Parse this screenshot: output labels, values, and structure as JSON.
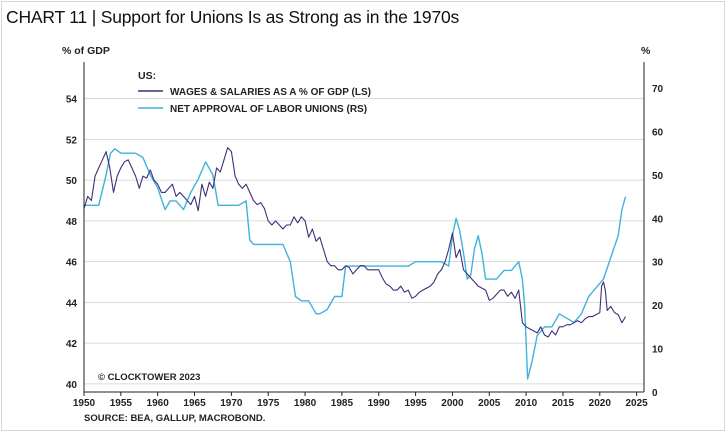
{
  "title_text": "CHART 11 | Support for Unions Is as Strong as in the 1970s",
  "chart_data": {
    "type": "line",
    "title": "CHART 11 | Support for Unions Is as Strong as in the 1970s",
    "left_axis_label": "% of GDP",
    "right_axis_label": "%",
    "legend_heading": "US:",
    "watermark": "© CLOCKTOWER 2023",
    "source": "SOURCE: BEA, GALLUP, MACROBOND.",
    "colors": {
      "wages": "#3d2f7a",
      "unions": "#3fb3dc",
      "grid": "#cfcfcf",
      "axis": "#222222"
    },
    "xlim": [
      1950,
      2026
    ],
    "ylim_left": [
      39.6,
      55.8
    ],
    "ylim_right": [
      0,
      76
    ],
    "x_ticks": [
      1950,
      1955,
      1960,
      1965,
      1970,
      1975,
      1980,
      1985,
      1990,
      1995,
      2000,
      2005,
      2010,
      2015,
      2020,
      2025
    ],
    "left_ticks": [
      40,
      42,
      44,
      46,
      48,
      50,
      52,
      54
    ],
    "right_ticks": [
      0,
      10,
      20,
      30,
      40,
      50,
      60,
      70
    ],
    "series": [
      {
        "name": "WAGES & SALARIES AS A % OF GDP (LS)",
        "axis": "left",
        "x": [
          1950.0,
          1950.5,
          1951.0,
          1951.5,
          1952.0,
          1952.5,
          1953.0,
          1953.5,
          1954.0,
          1954.5,
          1955.0,
          1955.5,
          1956.0,
          1956.5,
          1957.0,
          1957.5,
          1958.0,
          1958.5,
          1959.0,
          1959.5,
          1960.0,
          1960.5,
          1961.0,
          1961.5,
          1962.0,
          1962.5,
          1963.0,
          1963.5,
          1964.0,
          1964.5,
          1965.0,
          1965.5,
          1966.0,
          1966.5,
          1967.0,
          1967.5,
          1968.0,
          1968.5,
          1969.0,
          1969.5,
          1970.0,
          1970.5,
          1971.0,
          1971.5,
          1972.0,
          1972.5,
          1973.0,
          1973.5,
          1974.0,
          1974.5,
          1975.0,
          1975.5,
          1976.0,
          1976.5,
          1977.0,
          1977.5,
          1978.0,
          1978.5,
          1979.0,
          1979.5,
          1980.0,
          1980.5,
          1981.0,
          1981.5,
          1982.0,
          1982.5,
          1983.0,
          1983.5,
          1984.0,
          1984.5,
          1985.0,
          1985.5,
          1986.0,
          1986.5,
          1987.0,
          1987.5,
          1988.0,
          1988.5,
          1989.0,
          1989.5,
          1990.0,
          1990.5,
          1991.0,
          1991.5,
          1992.0,
          1992.5,
          1993.0,
          1993.5,
          1994.0,
          1994.5,
          1995.0,
          1995.5,
          1996.0,
          1996.5,
          1997.0,
          1997.5,
          1998.0,
          1998.5,
          1999.0,
          1999.5,
          2000.0,
          2000.5,
          2001.0,
          2001.5,
          2002.0,
          2002.5,
          2003.0,
          2003.5,
          2004.0,
          2004.5,
          2005.0,
          2005.5,
          2006.0,
          2006.5,
          2007.0,
          2007.5,
          2008.0,
          2008.5,
          2009.0,
          2009.5,
          2010.0,
          2010.5,
          2011.0,
          2011.5,
          2012.0,
          2012.5,
          2013.0,
          2013.5,
          2014.0,
          2014.5,
          2015.0,
          2015.5,
          2016.0,
          2016.5,
          2017.0,
          2017.5,
          2018.0,
          2018.5,
          2019.0,
          2019.5,
          2020.0,
          2020.25,
          2020.5,
          2020.75,
          2021.0,
          2021.5,
          2022.0,
          2022.5,
          2023.0,
          2023.5
        ],
        "values": [
          48.6,
          49.2,
          49.0,
          50.2,
          50.6,
          51.0,
          51.4,
          50.6,
          49.4,
          50.2,
          50.6,
          50.9,
          51.0,
          50.6,
          50.2,
          49.6,
          50.2,
          50.1,
          50.5,
          50.0,
          49.8,
          49.4,
          49.4,
          49.6,
          49.8,
          49.2,
          49.4,
          49.2,
          49.0,
          48.8,
          49.2,
          48.5,
          49.8,
          49.2,
          49.9,
          49.6,
          50.6,
          50.4,
          51.0,
          51.6,
          51.4,
          50.2,
          49.8,
          49.6,
          49.8,
          49.4,
          49.0,
          48.8,
          48.9,
          48.6,
          48.0,
          47.8,
          48.0,
          47.8,
          47.6,
          47.8,
          47.8,
          48.2,
          47.9,
          48.2,
          48.0,
          47.2,
          47.6,
          47.0,
          47.2,
          46.6,
          46.0,
          45.8,
          45.8,
          45.6,
          45.6,
          45.8,
          45.7,
          45.4,
          45.6,
          45.8,
          45.8,
          45.6,
          45.6,
          45.6,
          45.6,
          45.2,
          44.9,
          44.8,
          44.6,
          44.6,
          44.8,
          44.5,
          44.6,
          44.2,
          44.3,
          44.5,
          44.6,
          44.7,
          44.8,
          45.0,
          45.4,
          45.6,
          46.0,
          46.6,
          47.4,
          46.2,
          46.6,
          45.6,
          45.4,
          45.2,
          45.0,
          44.8,
          44.7,
          44.6,
          44.1,
          44.2,
          44.4,
          44.6,
          44.6,
          44.3,
          44.5,
          44.2,
          44.6,
          43.0,
          42.8,
          42.7,
          42.6,
          42.5,
          42.8,
          42.4,
          42.3,
          42.6,
          42.4,
          42.8,
          42.8,
          42.9,
          42.9,
          43.0,
          43.1,
          43.0,
          43.2,
          43.3,
          43.3,
          43.4,
          43.5,
          44.8,
          45.0,
          44.6,
          43.6,
          43.8,
          43.5,
          43.4,
          43.0,
          43.3
        ]
      },
      {
        "name": "NET APPROVAL OF LABOR UNIONS (RS)",
        "axis": "right",
        "x": [
          1950.0,
          1951.0,
          1952.0,
          1953.0,
          1953.6,
          1954.2,
          1955.0,
          1956.0,
          1957.0,
          1958.0,
          1959.0,
          1960.0,
          1961.0,
          1961.7,
          1962.5,
          1963.5,
          1964.5,
          1965.5,
          1966.5,
          1967.5,
          1968.2,
          1969.0,
          1970.0,
          1971.0,
          1972.0,
          1972.5,
          1973.0,
          1974.0,
          1975.0,
          1976.0,
          1977.0,
          1978.0,
          1978.7,
          1979.5,
          1980.5,
          1981.5,
          1982.0,
          1983.0,
          1984.0,
          1985.0,
          1985.5,
          1986.0,
          1987.0,
          1988.0,
          1989.0,
          1990.0,
          1991.0,
          1992.0,
          1993.0,
          1994.0,
          1995.0,
          1996.0,
          1997.0,
          1997.8,
          1998.5,
          1999.5,
          2000.0,
          2000.5,
          2001.0,
          2001.5,
          2002.0,
          2002.5,
          2003.0,
          2003.5,
          2004.0,
          2004.5,
          2005.0,
          2006.0,
          2007.0,
          2008.0,
          2009.0,
          2009.5,
          2009.8,
          2010.2,
          2010.8,
          2011.5,
          2012.5,
          2013.5,
          2014.5,
          2015.5,
          2016.5,
          2017.5,
          2018.5,
          2019.0,
          2019.5,
          2020.5,
          2021.5,
          2022.5,
          2023.0,
          2023.5
        ],
        "values": [
          43,
          43,
          43,
          50,
          55,
          56,
          55,
          55,
          55,
          54,
          50,
          47,
          42,
          44,
          44,
          42,
          46,
          49,
          53,
          50,
          43,
          43,
          43,
          43,
          44,
          35,
          34,
          34,
          34,
          34,
          34,
          30,
          22,
          21,
          21,
          18,
          18,
          19,
          22,
          22,
          29,
          29,
          29,
          29,
          29,
          29,
          29,
          29,
          29,
          29,
          30,
          30,
          30,
          30,
          30,
          29,
          36,
          40,
          37,
          32,
          26,
          27,
          33,
          36,
          32,
          26,
          26,
          26,
          28,
          28,
          30,
          26,
          20,
          3,
          7,
          13,
          15,
          15,
          18,
          17,
          16,
          18,
          22,
          23,
          24,
          26,
          31,
          36,
          42,
          45
        ]
      }
    ]
  }
}
